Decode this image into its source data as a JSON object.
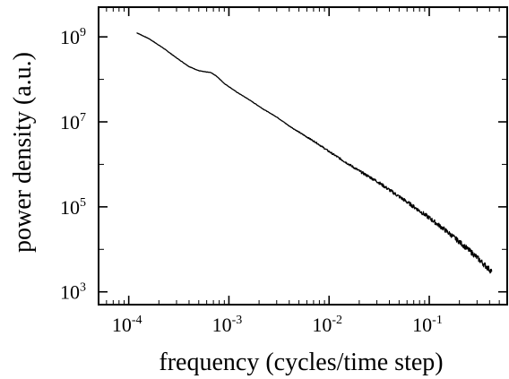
{
  "chart_data": {
    "type": "line",
    "title": "",
    "xlabel": "frequency (cycles/time step)",
    "ylabel": "power density (a.u.)",
    "xscale": "log",
    "yscale": "log",
    "xlim": [
      5e-05,
      0.6
    ],
    "ylim": [
      500,
      5000000000
    ],
    "grid": false,
    "x_ticks": [
      {
        "base": "10",
        "exp": "-4",
        "value": 0.0001
      },
      {
        "base": "10",
        "exp": "-3",
        "value": 0.001
      },
      {
        "base": "10",
        "exp": "-2",
        "value": 0.01
      },
      {
        "base": "10",
        "exp": "-1",
        "value": 0.1
      }
    ],
    "y_ticks": [
      {
        "base": "10",
        "exp": "3",
        "value": 1000
      },
      {
        "base": "10",
        "exp": "5",
        "value": 100000
      },
      {
        "base": "10",
        "exp": "7",
        "value": 10000000
      },
      {
        "base": "10",
        "exp": "9",
        "value": 1000000000
      }
    ],
    "series": [
      {
        "color": "#000000",
        "x": [
          0.00012,
          0.00016,
          0.00022,
          0.0003,
          0.0004,
          0.0005,
          0.00058,
          0.00066,
          0.00075,
          0.0009,
          0.0012,
          0.0016,
          0.0022,
          0.003,
          0.004,
          0.0055,
          0.0075,
          0.01,
          0.014,
          0.02,
          0.03,
          0.04,
          0.055,
          0.075,
          0.1,
          0.14,
          0.2,
          0.28,
          0.35,
          0.42
        ],
        "y": [
          1250000000,
          900000000,
          550000000,
          320000000,
          200000000,
          160000000,
          150000000,
          145000000,
          120000000,
          80000000,
          50000000,
          33000000,
          20000000,
          13000000,
          8000000,
          5000000,
          3200000,
          2000000,
          1200000,
          700000,
          400000,
          250000,
          150000,
          90000,
          55000,
          30000,
          15000,
          7500,
          4500,
          3000
        ]
      }
    ]
  }
}
